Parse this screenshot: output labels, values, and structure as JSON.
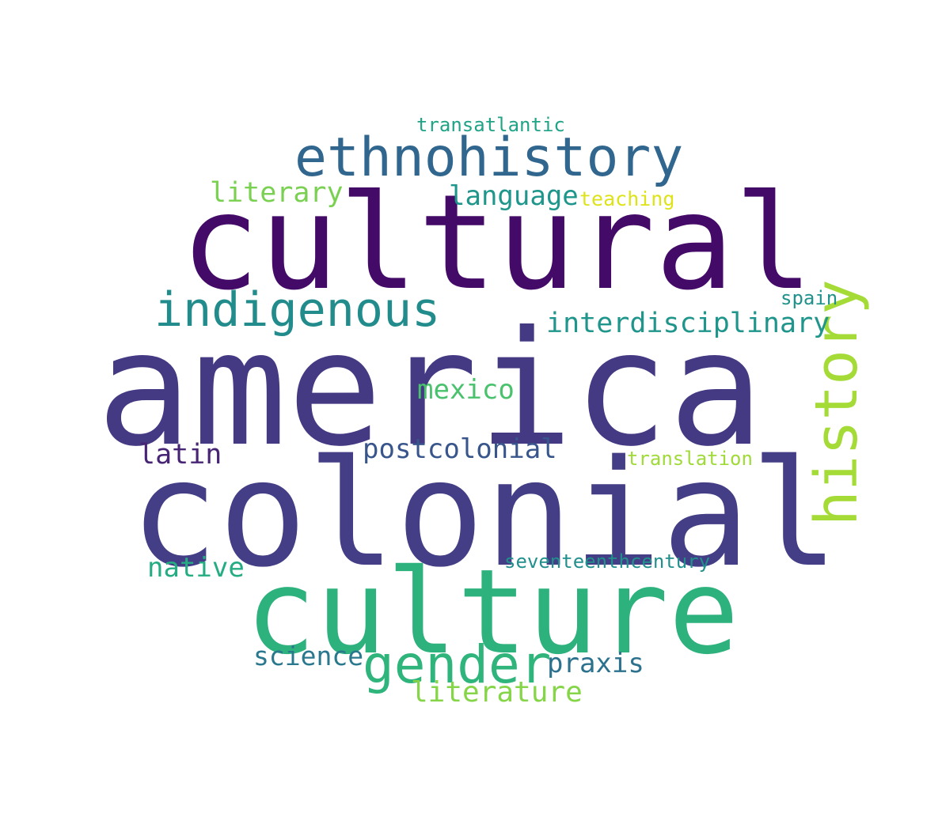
{
  "words": [
    {
      "key": "america",
      "text": "america",
      "color": "#443983"
    },
    {
      "key": "colonial",
      "text": "colonial",
      "color": "#433e85"
    },
    {
      "key": "cultural",
      "text": "cultural",
      "color": "#440a68"
    },
    {
      "key": "culture",
      "text": "culture",
      "color": "#2db27d"
    },
    {
      "key": "ethnohistory",
      "text": "ethnohistory",
      "color": "#31668e"
    },
    {
      "key": "history",
      "text": "history",
      "color": "#a5db36"
    },
    {
      "key": "indigenous",
      "text": "indigenous",
      "color": "#228c8d"
    },
    {
      "key": "gender",
      "text": "gender",
      "color": "#2fb47c"
    },
    {
      "key": "interdisciplinary",
      "text": "interdisciplinary",
      "color": "#1f958b"
    },
    {
      "key": "language",
      "text": "language",
      "color": "#1f968b"
    },
    {
      "key": "literary",
      "text": "literary",
      "color": "#7ad151"
    },
    {
      "key": "mexico",
      "text": "mexico",
      "color": "#4ac16d"
    },
    {
      "key": "postcolonial",
      "text": "postcolonial",
      "color": "#39568c"
    },
    {
      "key": "latin",
      "text": "latin",
      "color": "#482475"
    },
    {
      "key": "native",
      "text": "native",
      "color": "#25ac82"
    },
    {
      "key": "science",
      "text": "science",
      "color": "#2a788e"
    },
    {
      "key": "praxis",
      "text": "praxis",
      "color": "#2c728e"
    },
    {
      "key": "literature",
      "text": "literature",
      "color": "#86d549"
    },
    {
      "key": "transatlantic",
      "text": "transatlantic",
      "color": "#20a386"
    },
    {
      "key": "teaching",
      "text": "teaching",
      "color": "#dde318"
    },
    {
      "key": "spain",
      "text": "spain",
      "color": "#21918c"
    },
    {
      "key": "translation",
      "text": "translation",
      "color": "#a0da39"
    },
    {
      "key": "seventeenthcentury",
      "text": "seventeenthcentury",
      "color": "#21908d"
    }
  ]
}
